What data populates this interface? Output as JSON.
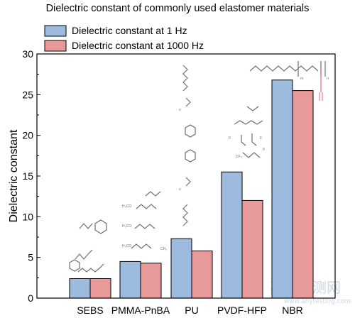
{
  "chart_data": {
    "type": "bar",
    "title": "Dielectric constant of commonly used elastomer materials",
    "ylabel": "Dielectric constant",
    "xlabel": "",
    "ylim": [
      0,
      30
    ],
    "yticks": [
      0,
      5,
      10,
      15,
      20,
      25,
      30
    ],
    "categories": [
      "SEBS",
      "PMMA-PnBA",
      "PU",
      "PVDF-HFP",
      "NBR"
    ],
    "series": [
      {
        "name": "Dielectric constant at 1 Hz",
        "color": "#9dbbdf",
        "values": [
          2.4,
          4.5,
          7.3,
          15.5,
          26.8
        ]
      },
      {
        "name": "Dielectric constant at 1000 Hz",
        "color": "#e89a9a",
        "values": [
          2.4,
          4.3,
          5.8,
          12.0,
          25.5
        ]
      }
    ],
    "legend_position": "top-left",
    "grid": false
  },
  "watermark": {
    "cn": "嘉峪检测网",
    "url": "www.anytesting.com"
  }
}
